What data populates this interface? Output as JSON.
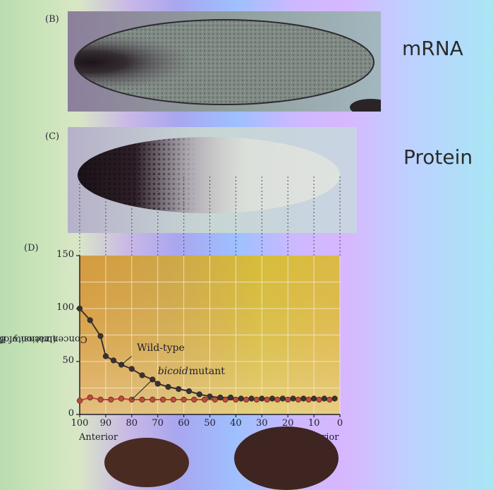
{
  "panels": {
    "b_label": "(B)",
    "c_label": "(C)",
    "d_label": "(D)",
    "mrna_label": "mRNA",
    "protein_label": "Protein"
  },
  "chart_data": {
    "type": "line",
    "title": "",
    "xlabel": "",
    "ylabel": "Concentration of Bicoid protein",
    "ylabel_sub": "(intensity of stain)",
    "x_end_labels": {
      "left": "Anterior",
      "right": "rior"
    },
    "xlim": [
      100,
      0
    ],
    "ylim": [
      0,
      150
    ],
    "x_ticks": [
      100,
      90,
      80,
      70,
      60,
      50,
      40,
      30,
      20,
      10,
      0
    ],
    "y_ticks": [
      0,
      50,
      100,
      150
    ],
    "grid": true,
    "series": [
      {
        "name": "Wild-type",
        "color": "#3a3232",
        "points": [
          [
            100,
            100
          ],
          [
            96,
            89
          ],
          [
            92,
            74
          ],
          [
            90,
            55
          ],
          [
            87,
            51
          ],
          [
            84,
            47
          ],
          [
            80,
            43
          ],
          [
            76,
            37
          ],
          [
            72,
            33
          ],
          [
            70,
            29
          ],
          [
            66,
            26
          ],
          [
            62,
            24
          ],
          [
            58,
            22
          ],
          [
            54,
            19
          ],
          [
            50,
            17
          ],
          [
            46,
            16
          ],
          [
            42,
            16
          ],
          [
            38,
            15
          ],
          [
            34,
            15
          ],
          [
            30,
            15
          ],
          [
            26,
            15
          ],
          [
            22,
            15
          ],
          [
            18,
            15
          ],
          [
            14,
            15
          ],
          [
            10,
            15
          ],
          [
            6,
            15
          ],
          [
            2,
            15
          ]
        ]
      },
      {
        "name": "bicoid mutant",
        "color": "#c04a3c",
        "points": [
          [
            100,
            13
          ],
          [
            96,
            16
          ],
          [
            92,
            14
          ],
          [
            88,
            14
          ],
          [
            84,
            15
          ],
          [
            80,
            14
          ],
          [
            76,
            14
          ],
          [
            72,
            14
          ],
          [
            68,
            14
          ],
          [
            64,
            14
          ],
          [
            60,
            14
          ],
          [
            56,
            14
          ],
          [
            52,
            14
          ],
          [
            48,
            14
          ],
          [
            44,
            14
          ],
          [
            40,
            14
          ],
          [
            36,
            14
          ],
          [
            32,
            14
          ],
          [
            28,
            14
          ],
          [
            24,
            14
          ],
          [
            20,
            14
          ],
          [
            16,
            14
          ],
          [
            12,
            14
          ],
          [
            8,
            14
          ],
          [
            4,
            14
          ]
        ]
      }
    ],
    "annotations": [
      {
        "text": "Wild-type",
        "series": "Wild-type",
        "x": 78,
        "y": 60
      },
      {
        "text": "bicoid",
        "italic": true,
        "series": "bicoid mutant",
        "x": 70,
        "y": 38
      },
      {
        "text": "mutant",
        "series": "bicoid mutant",
        "x": 58,
        "y": 38
      }
    ]
  }
}
